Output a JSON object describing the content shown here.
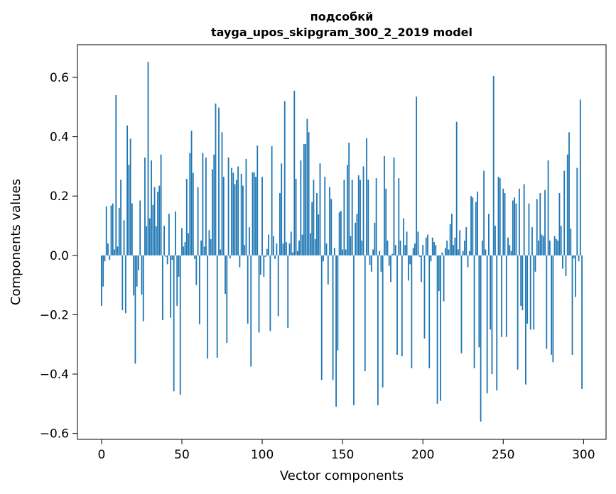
{
  "chart_data": {
    "type": "bar",
    "title": "подсобкй",
    "subtitle": "tayga_upos_skipgram_300_2_2019 model",
    "xlabel": "Vector components",
    "ylabel": "Components values",
    "xlim": [
      -15,
      314
    ],
    "ylim": [
      -0.62,
      0.71
    ],
    "xticks": [
      0,
      50,
      100,
      150,
      200,
      250,
      300
    ],
    "xtick_labels": [
      "0",
      "50",
      "100",
      "150",
      "200",
      "250",
      "300"
    ],
    "yticks": [
      -0.6,
      -0.4,
      -0.2,
      0.0,
      0.2,
      0.4,
      0.6
    ],
    "ytick_labels": [
      "−0.6",
      "−0.4",
      "−0.2",
      "0.0",
      "0.2",
      "0.4",
      "0.6"
    ],
    "bar_color": "#1f77b4",
    "series": [
      {
        "name": "components",
        "x_start": 0,
        "values": [
          -0.17,
          -0.105,
          -0.02,
          0.165,
          0.04,
          -0.015,
          0.168,
          0.175,
          0.02,
          0.54,
          0.03,
          0.16,
          0.255,
          -0.185,
          0.118,
          -0.195,
          0.438,
          0.305,
          0.393,
          0.175,
          -0.135,
          -0.365,
          -0.105,
          -0.05,
          0.185,
          -0.132,
          -0.222,
          0.33,
          0.098,
          0.652,
          0.125,
          0.32,
          0.17,
          0.23,
          0.098,
          0.215,
          0.235,
          0.34,
          -0.218,
          0.1,
          -0.005,
          -0.03,
          0.14,
          -0.21,
          -0.015,
          -0.458,
          0.148,
          -0.17,
          -0.072,
          -0.47,
          0.092,
          0.03,
          0.045,
          0.258,
          0.075,
          0.345,
          0.42,
          0.278,
          -0.012,
          -0.1,
          0.23,
          -0.232,
          0.05,
          0.345,
          0.03,
          0.33,
          -0.348,
          0.085,
          0.055,
          0.29,
          0.34,
          0.512,
          -0.345,
          0.498,
          0.02,
          0.415,
          0.265,
          -0.13,
          -0.295,
          0.33,
          -0.01,
          0.295,
          0.278,
          0.24,
          0.255,
          0.3,
          -0.04,
          0.275,
          0.235,
          0.035,
          0.325,
          -0.23,
          0.095,
          -0.375,
          0.28,
          0.28,
          0.265,
          0.37,
          -0.26,
          -0.065,
          0.265,
          -0.072,
          -0.005,
          0.022,
          0.07,
          -0.255,
          0.368,
          0.065,
          -0.012,
          0.04,
          -0.205,
          0.21,
          0.31,
          0.04,
          0.52,
          0.045,
          -0.245,
          0.04,
          0.08,
          0.01,
          0.555,
          0.258,
          0.015,
          0.05,
          0.32,
          0.07,
          0.375,
          0.375,
          0.46,
          0.415,
          0.075,
          0.18,
          0.255,
          0.055,
          0.21,
          0.138,
          0.31,
          -0.42,
          -0.02,
          0.265,
          0.04,
          -0.098,
          0.23,
          0.19,
          -0.42,
          0.025,
          -0.51,
          -0.32,
          0.145,
          0.15,
          0.02,
          0.255,
          0.02,
          0.305,
          0.38,
          0.065,
          0.255,
          -0.505,
          0.11,
          0.14,
          0.27,
          0.255,
          0.05,
          0.3,
          -0.39,
          0.395,
          0.255,
          -0.032,
          -0.055,
          0.02,
          0.11,
          0.26,
          -0.505,
          0.015,
          -0.055,
          -0.445,
          0.335,
          0.225,
          0.05,
          -0.035,
          -0.09,
          0.005,
          0.33,
          0.035,
          -0.335,
          0.26,
          0.05,
          -0.34,
          0.125,
          0.035,
          0.08,
          -0.085,
          -0.03,
          -0.38,
          0.025,
          0.04,
          0.535,
          0.08,
          -0.005,
          -0.09,
          0.035,
          -0.28,
          0.06,
          0.07,
          -0.38,
          -0.02,
          0.06,
          0.045,
          0.035,
          -0.5,
          -0.12,
          -0.49,
          0.01,
          -0.155,
          0.025,
          0.05,
          0.02,
          0.105,
          0.14,
          0.035,
          0.06,
          0.45,
          0.02,
          0.085,
          -0.33,
          0.015,
          0.05,
          0.095,
          -0.04,
          0.015,
          0.2,
          0.195,
          -0.38,
          0.18,
          0.215,
          -0.31,
          -0.56,
          0.05,
          0.285,
          0.02,
          -0.465,
          0.14,
          -0.25,
          -0.4,
          0.605,
          0.1,
          -0.455,
          0.265,
          0.26,
          -0.275,
          0.225,
          0.21,
          -0.275,
          0.06,
          0.035,
          0.015,
          0.185,
          0.195,
          0.175,
          -0.385,
          0.225,
          -0.17,
          -0.185,
          0.24,
          -0.435,
          -0.23,
          0.175,
          -0.25,
          0.095,
          -0.25,
          -0.055,
          0.19,
          0.05,
          0.21,
          0.07,
          0.065,
          0.22,
          -0.315,
          0.32,
          0.05,
          -0.335,
          -0.36,
          0.065,
          0.055,
          0.05,
          0.21,
          0.1,
          -0.045,
          0.285,
          -0.07,
          0.34,
          0.415,
          0.09,
          -0.335,
          -0.01,
          -0.14,
          0.295,
          -0.02,
          0.525,
          -0.45
        ]
      }
    ]
  }
}
